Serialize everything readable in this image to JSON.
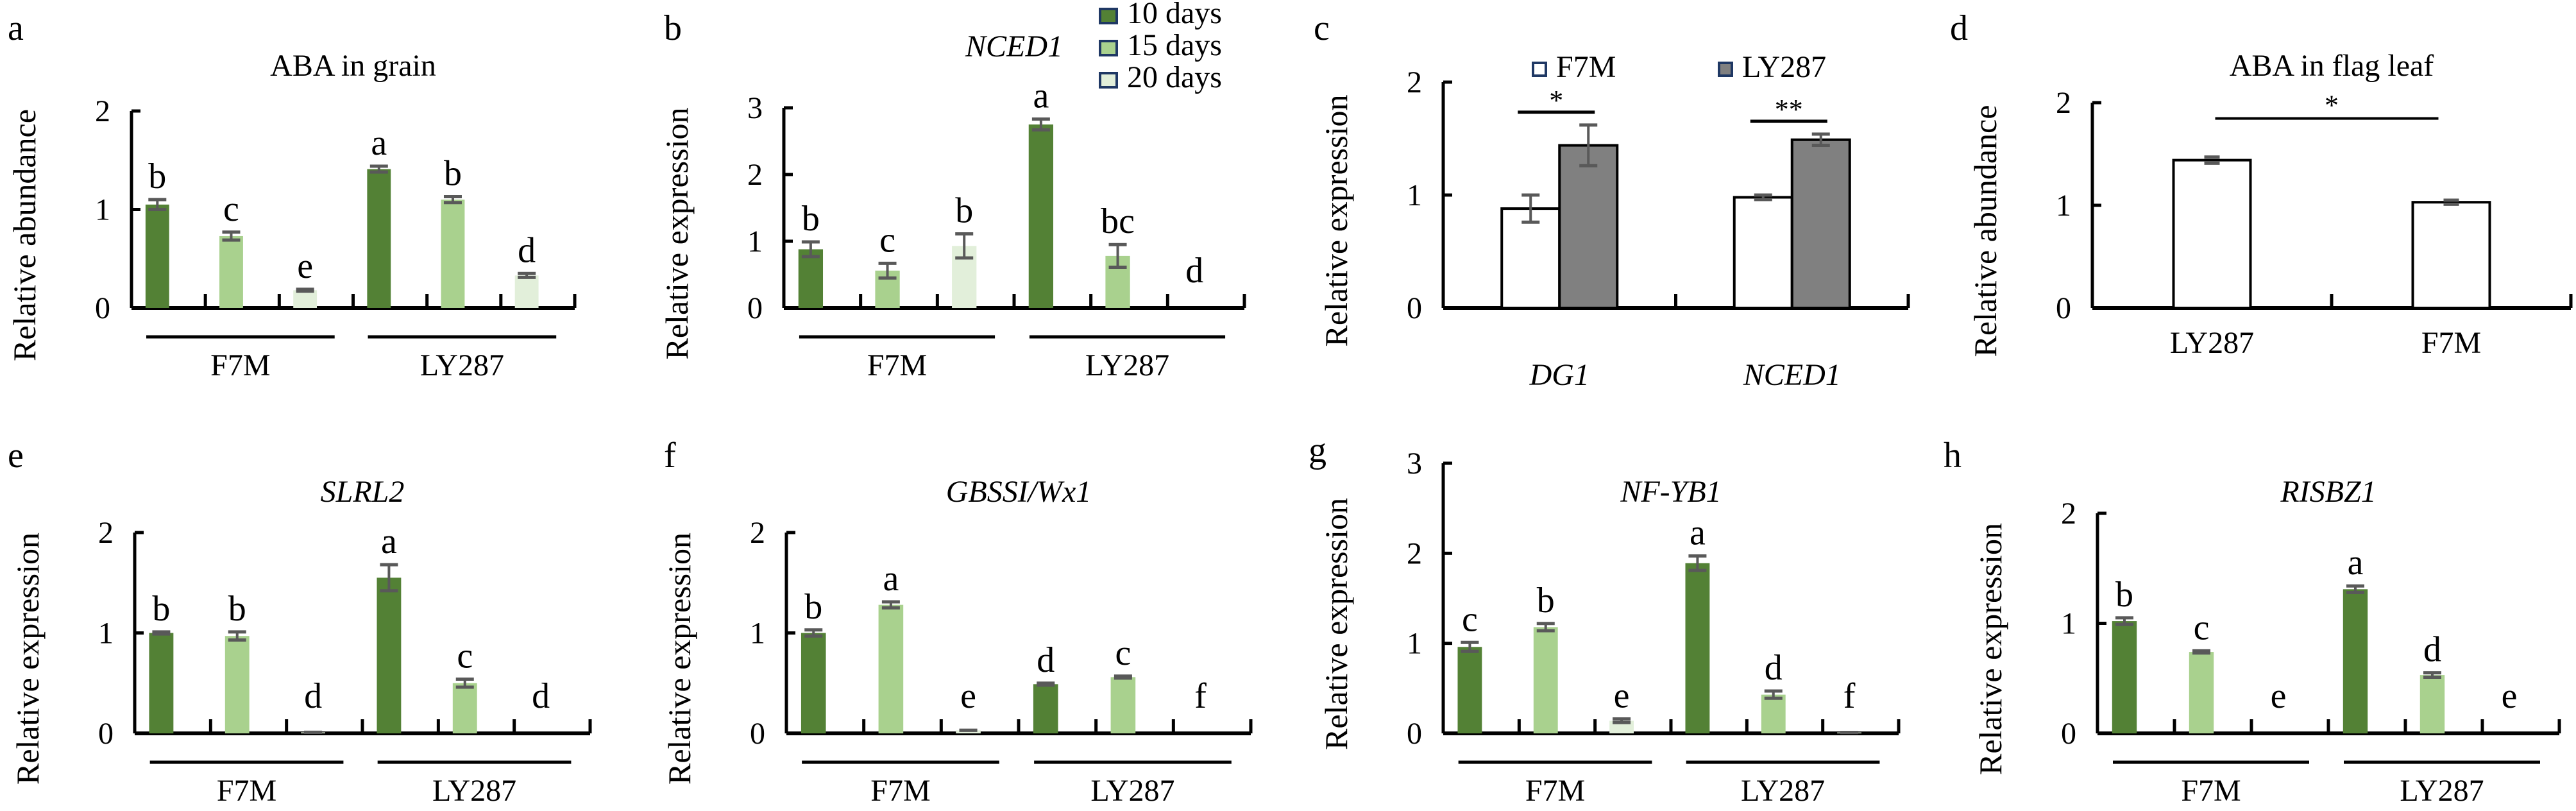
{
  "chart_data": [
    {
      "panel": "a",
      "type": "bar",
      "title": "ABA in grain",
      "title_italic": false,
      "ylabel": "Relative abundance",
      "ylim": [
        0,
        2
      ],
      "yticks": [
        "0",
        "1",
        "2"
      ],
      "groups": [
        "F7M",
        "LY287"
      ],
      "series": [
        {
          "name": "10 days",
          "values": [
            1.05,
            1.41
          ],
          "errors": [
            0.05,
            0.03
          ],
          "letters": [
            "b",
            "a"
          ]
        },
        {
          "name": "15 days",
          "values": [
            0.73,
            1.1
          ],
          "errors": [
            0.04,
            0.03
          ],
          "letters": [
            "c",
            "b"
          ]
        },
        {
          "name": "20 days",
          "values": [
            0.18,
            0.33
          ],
          "errors": [
            0.01,
            0.02
          ],
          "letters": [
            "e",
            "d"
          ]
        }
      ]
    },
    {
      "panel": "b",
      "type": "bar",
      "title": "NCED1",
      "title_italic": true,
      "ylabel": "Relative expression",
      "ylim": [
        0,
        3
      ],
      "yticks": [
        "0",
        "1",
        "2",
        "3"
      ],
      "groups": [
        "F7M",
        "LY287"
      ],
      "legend": [
        "10 days",
        "15 days",
        "20 days"
      ],
      "series": [
        {
          "name": "10 days",
          "values": [
            0.88,
            2.75
          ],
          "errors": [
            0.11,
            0.08
          ],
          "letters": [
            "b",
            "a"
          ]
        },
        {
          "name": "15 days",
          "values": [
            0.56,
            0.78
          ],
          "errors": [
            0.11,
            0.17
          ],
          "letters": [
            "c",
            "bc"
          ]
        },
        {
          "name": "20 days",
          "values": [
            0.93,
            0.0
          ],
          "errors": [
            0.18,
            0.0
          ],
          "letters": [
            "b",
            "d"
          ]
        }
      ]
    },
    {
      "panel": "c",
      "type": "bar",
      "title": "",
      "title_italic": false,
      "ylabel": "Relative expression",
      "ylim": [
        0,
        2
      ],
      "yticks": [
        "0",
        "1",
        "2"
      ],
      "categories": [
        "DG1",
        "NCED1"
      ],
      "categories_italic": true,
      "legend": [
        "F7M",
        "LY287"
      ],
      "series": [
        {
          "name": "F7M",
          "values": [
            0.88,
            0.98
          ],
          "errors": [
            0.12,
            0.02
          ]
        },
        {
          "name": "LY287",
          "values": [
            1.44,
            1.49
          ],
          "errors": [
            0.18,
            0.05
          ]
        }
      ],
      "significance": [
        "*",
        "**"
      ]
    },
    {
      "panel": "d",
      "type": "bar",
      "title": "ABA in flag leaf",
      "title_italic": false,
      "ylabel": "Relative abundance",
      "ylim": [
        0,
        2
      ],
      "yticks": [
        "0",
        "1",
        "2"
      ],
      "categories": [
        "LY287",
        "F7M"
      ],
      "values": [
        1.44,
        1.03
      ],
      "errors": [
        0.03,
        0.02
      ],
      "significance": "*"
    },
    {
      "panel": "e",
      "type": "bar",
      "title": "SLRL2",
      "title_italic": true,
      "ylabel": "Relative expression",
      "ylim": [
        0,
        2
      ],
      "yticks": [
        "0",
        "1",
        "2"
      ],
      "groups": [
        "F7M",
        "LY287"
      ],
      "series": [
        {
          "name": "10 days",
          "values": [
            1.0,
            1.55
          ],
          "errors": [
            0.01,
            0.13
          ],
          "letters": [
            "b",
            "a"
          ]
        },
        {
          "name": "15 days",
          "values": [
            0.97,
            0.5
          ],
          "errors": [
            0.04,
            0.04
          ],
          "letters": [
            "b",
            "c"
          ]
        },
        {
          "name": "20 days",
          "values": [
            0.01,
            0.0
          ],
          "errors": [
            0.0,
            0.0
          ],
          "letters": [
            "d",
            "d"
          ]
        }
      ]
    },
    {
      "panel": "f",
      "type": "bar",
      "title": "GBSSI/Wx1",
      "title_italic": true,
      "ylabel": "Relative expression",
      "ylim": [
        0,
        2
      ],
      "yticks": [
        "0",
        "1",
        "2"
      ],
      "groups": [
        "F7M",
        "LY287"
      ],
      "series": [
        {
          "name": "10 days",
          "values": [
            1.0,
            0.49
          ],
          "errors": [
            0.03,
            0.01
          ],
          "letters": [
            "b",
            "d"
          ]
        },
        {
          "name": "15 days",
          "values": [
            1.28,
            0.56
          ],
          "errors": [
            0.03,
            0.01
          ],
          "letters": [
            "a",
            "c"
          ]
        },
        {
          "name": "20 days",
          "values": [
            0.03,
            0.0
          ],
          "errors": [
            0.0,
            0.0
          ],
          "letters": [
            "e",
            "f"
          ]
        }
      ]
    },
    {
      "panel": "g",
      "type": "bar",
      "title": "NF-YB1",
      "title_italic": true,
      "ylabel": "Relative expression",
      "ylim": [
        0,
        3
      ],
      "yticks": [
        "0",
        "1",
        "2",
        "3"
      ],
      "groups": [
        "F7M",
        "LY287"
      ],
      "series": [
        {
          "name": "10 days",
          "values": [
            0.96,
            1.89
          ],
          "errors": [
            0.05,
            0.08
          ],
          "letters": [
            "c",
            "a"
          ]
        },
        {
          "name": "15 days",
          "values": [
            1.18,
            0.43
          ],
          "errors": [
            0.04,
            0.04
          ],
          "letters": [
            "b",
            "d"
          ]
        },
        {
          "name": "20 days",
          "values": [
            0.14,
            0.01
          ],
          "errors": [
            0.02,
            0.0
          ],
          "letters": [
            "e",
            "f"
          ]
        }
      ]
    },
    {
      "panel": "h",
      "type": "bar",
      "title": "RISBZ1",
      "title_italic": true,
      "ylabel": "Relative expression",
      "ylim": [
        0,
        2
      ],
      "yticks": [
        "0",
        "1",
        "2"
      ],
      "groups": [
        "F7M",
        "LY287"
      ],
      "series": [
        {
          "name": "10 days",
          "values": [
            1.02,
            1.31
          ],
          "errors": [
            0.03,
            0.03
          ],
          "letters": [
            "b",
            "a"
          ]
        },
        {
          "name": "15 days",
          "values": [
            0.74,
            0.53
          ],
          "errors": [
            0.01,
            0.02
          ],
          "letters": [
            "c",
            "d"
          ]
        },
        {
          "name": "20 days",
          "values": [
            0.0,
            0.0
          ],
          "errors": [
            0.0,
            0.0
          ],
          "letters": [
            "e",
            "e"
          ]
        }
      ]
    }
  ],
  "colors": {
    "day10": "#538135",
    "day15": "#a9d18e",
    "day20": "#e2efda",
    "f7m": "#ffffff",
    "ly287": "#808080",
    "error_bar": "#595959",
    "legend_border": "#1f3864",
    "axis": "#000000"
  }
}
